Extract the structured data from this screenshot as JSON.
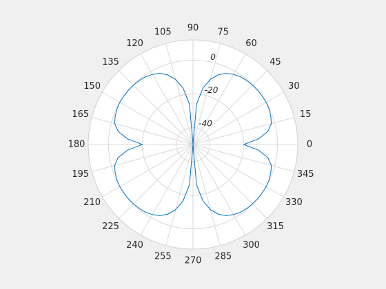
{
  "chart_data": {
    "type": "polar",
    "theta": [
      0,
      5,
      10,
      15,
      20,
      25,
      30,
      35,
      40,
      45,
      50,
      55,
      60,
      65,
      70,
      75,
      80,
      85,
      90,
      95,
      100,
      105,
      110,
      115,
      120,
      125,
      130,
      135,
      140,
      145,
      150,
      155,
      160,
      165,
      170,
      175,
      180,
      185,
      190,
      195,
      200,
      205,
      210,
      215,
      220,
      225,
      230,
      235,
      240,
      245,
      250,
      255,
      260,
      265,
      270,
      275,
      280,
      285,
      290,
      295,
      300,
      305,
      310,
      315,
      320,
      325,
      330,
      335,
      340,
      345,
      350,
      355,
      360
    ],
    "series": [
      {
        "color": "#0072bd",
        "values": [
          -20,
          -11,
          -5,
          -2,
          -1,
          -0.3,
          0,
          0,
          0,
          -0.2,
          -0.5,
          -1,
          -2,
          -3.5,
          -6,
          -10,
          -16,
          -26,
          -50,
          -26,
          -16,
          -10,
          -6,
          -3.5,
          -2,
          -1,
          -0.5,
          -0.2,
          0,
          0,
          0,
          -0.3,
          -1,
          -2,
          -5,
          -11,
          -20,
          -11,
          -5,
          -2,
          -1,
          -0.3,
          0,
          0,
          0,
          -0.2,
          -0.5,
          -1,
          -2,
          -3.5,
          -6,
          -10,
          -16,
          -26,
          -50,
          -26,
          -16,
          -10,
          -6,
          -3.5,
          -2,
          -1,
          -0.5,
          -0.2,
          0,
          0,
          0,
          -0.3,
          -1,
          -2,
          -5,
          -11,
          -20
        ]
      }
    ],
    "rlim": [
      -50,
      12
    ],
    "rticks": [
      -40,
      -20,
      0
    ],
    "thetaticks": [
      0,
      15,
      30,
      45,
      60,
      75,
      90,
      105,
      120,
      135,
      150,
      165,
      180,
      195,
      210,
      225,
      240,
      255,
      270,
      285,
      300,
      315,
      330,
      345
    ],
    "grid": true
  }
}
